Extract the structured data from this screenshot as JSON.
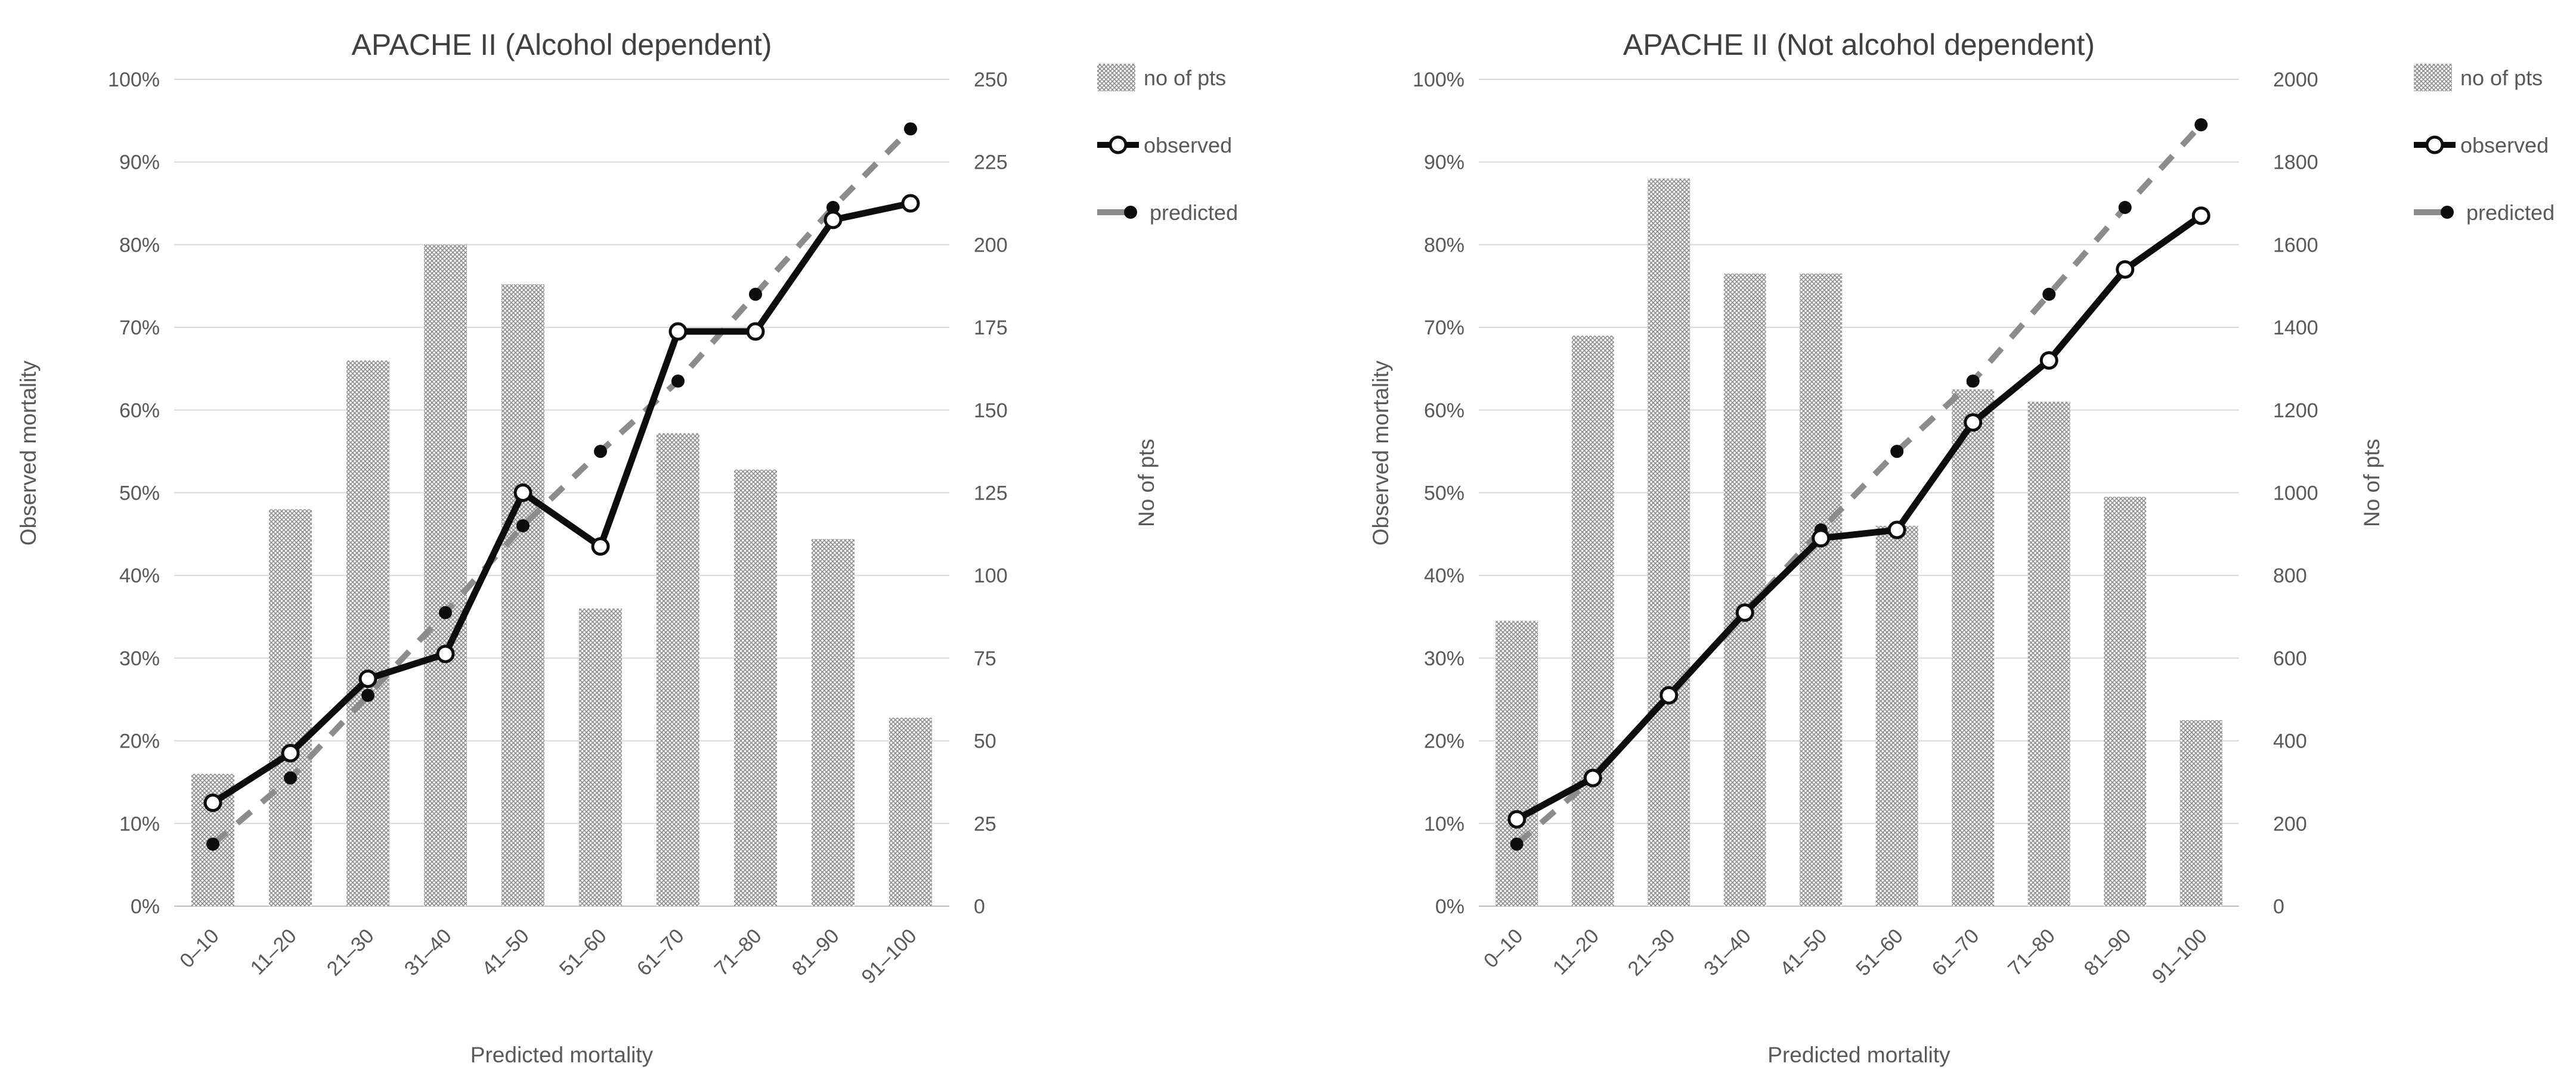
{
  "page": {
    "background": "#ffffff"
  },
  "colors": {
    "text": "#595959",
    "title_text": "#404040",
    "gridline": "#d9d9d9",
    "axis_line": "#bfbfbf",
    "bar_hatch": "#8f8f8f",
    "observed_line": "#0d0d0d",
    "observed_marker_fill": "#ffffff",
    "predicted_line": "#8c8c8c",
    "predicted_marker_fill": "#0d0d0d"
  },
  "chart_data": [
    {
      "type": "bar+line combo",
      "title": "APACHE II (Alcohol dependent)",
      "xlabel": "Predicted mortality",
      "ylabel_left": "Observed mortality",
      "ylabel_right": "No of pts",
      "categories": [
        "0–10",
        "11–20",
        "21–30",
        "31–40",
        "41–50",
        "51–60",
        "61–70",
        "71–80",
        "81–90",
        "91–100"
      ],
      "y_axis_left": {
        "min": 0,
        "max": 100,
        "step": 10,
        "unit": "%",
        "tick_labels": [
          "0%",
          "10%",
          "20%",
          "30%",
          "40%",
          "50%",
          "60%",
          "70%",
          "80%",
          "90%",
          "100%"
        ]
      },
      "y_axis_right": {
        "min": 0,
        "max": 250,
        "step": 25,
        "tick_labels": [
          "0",
          "25",
          "50",
          "75",
          "100",
          "125",
          "150",
          "175",
          "200",
          "225",
          "250"
        ]
      },
      "grid": "horizontal",
      "legend_position": "right",
      "series": [
        {
          "name": "no of pts",
          "type": "bar",
          "axis": "right",
          "values": [
            40,
            120,
            165,
            200,
            188,
            90,
            143,
            132,
            111,
            57
          ]
        },
        {
          "name": "observed",
          "type": "line",
          "axis": "left",
          "marker": "open-circle",
          "values": [
            12.5,
            18.5,
            27.5,
            30.5,
            50,
            43.5,
            69.5,
            69.5,
            83,
            85
          ]
        },
        {
          "name": "predicted",
          "type": "dashed-line",
          "axis": "left",
          "marker": "filled-circle",
          "values": [
            7.5,
            15.5,
            25.5,
            35.5,
            46,
            55,
            63.5,
            74,
            84.5,
            94
          ]
        }
      ]
    },
    {
      "type": "bar+line combo",
      "title": "APACHE II (Not alcohol dependent)",
      "xlabel": "Predicted mortality",
      "ylabel_left": "Observed mortality",
      "ylabel_right": "No of pts",
      "categories": [
        "0–10",
        "11–20",
        "21–30",
        "31–40",
        "41–50",
        "51–60",
        "61–70",
        "71–80",
        "81–90",
        "91–100"
      ],
      "y_axis_left": {
        "min": 0,
        "max": 100,
        "step": 10,
        "unit": "%",
        "tick_labels": [
          "0%",
          "10%",
          "20%",
          "30%",
          "40%",
          "50%",
          "60%",
          "70%",
          "80%",
          "90%",
          "100%"
        ]
      },
      "y_axis_right": {
        "min": 0,
        "max": 2000,
        "step": 200,
        "tick_labels": [
          "0",
          "200",
          "400",
          "600",
          "800",
          "1000",
          "1200",
          "1400",
          "1600",
          "1800",
          "2000"
        ]
      },
      "grid": "horizontal",
      "legend_position": "right",
      "series": [
        {
          "name": "no of pts",
          "type": "bar",
          "axis": "right",
          "values": [
            690,
            1380,
            1760,
            1530,
            1530,
            920,
            1250,
            1220,
            990,
            450
          ]
        },
        {
          "name": "observed",
          "type": "line",
          "axis": "left",
          "marker": "open-circle",
          "values": [
            10.5,
            15.5,
            25.5,
            35.5,
            44.5,
            45.5,
            58.5,
            66,
            77,
            83.5
          ]
        },
        {
          "name": "predicted",
          "type": "dashed-line",
          "axis": "left",
          "marker": "filled-circle",
          "values": [
            7.5,
            15.5,
            25.5,
            35.5,
            45.5,
            55,
            63.5,
            74,
            84.5,
            94.5
          ]
        }
      ]
    }
  ]
}
